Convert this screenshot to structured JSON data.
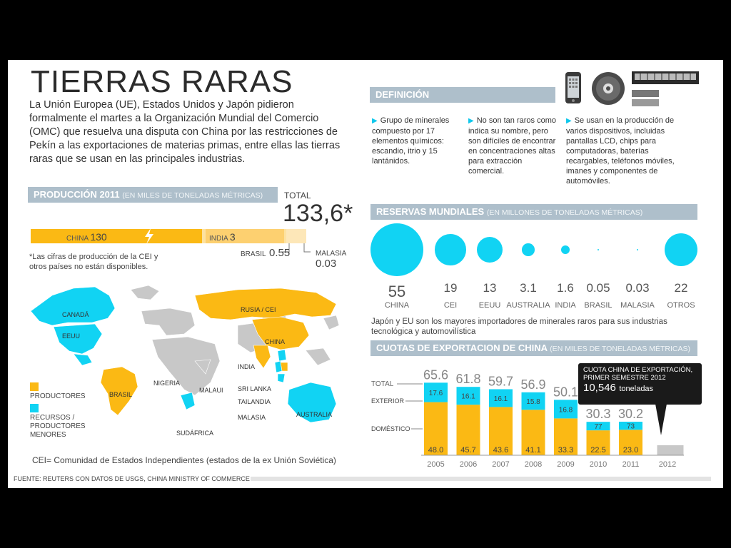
{
  "title": "TIERRAS RARAS",
  "intro": "La Unión Europea (UE), Estados Unidos y Japón pidieron formalmente el martes a la Organización Mundial del Comercio (OMC) que resuelva una disputa con China por las restricciones de Pekín a las exportaciones de materias primas, entre ellas las tierras raras que se usan en las principales industrias.",
  "definicion": {
    "header": "DEFINICIÓN",
    "items": [
      "Grupo de minerales compuesto por 17 elementos químicos: escandio, itrio y 15 lantánidos.",
      "No son tan raros como indica su nombre, pero son difíciles de encontrar en concentraciones altas para extracción comercial.",
      "Se usan en la producción de varios dispositivos, incluidas pantallas LCD, chips para computadoras, baterías recargables, teléfonos móviles, imanes y componentes de automóviles."
    ]
  },
  "produccion": {
    "header": "PRODUCCIÓN 2011",
    "unit": "(EN MILES DE TONELADAS MÉTRICAS)",
    "total_label": "TOTAL",
    "total_value": "133,6*",
    "china_label": "CHINA",
    "china_value": "130",
    "india_label": "INDIA",
    "india_value": "3",
    "brasil_label": "BRASIL",
    "brasil_value": "0.55",
    "malasia_label": "MALASIA",
    "malasia_value": "0.03",
    "note": "*Las cifras de producción de la CEI y otros países no están disponibles."
  },
  "map": {
    "labels": {
      "canada": "CANADÁ",
      "eeuu": "EEUU",
      "rusia": "RUSIA / CEI",
      "china": "CHINA",
      "india": "INDIA",
      "nigeria": "NIGERIA",
      "malawi": "MALAUI",
      "brasil": "BRASIL",
      "srilanka": "SRI LANKA",
      "tailandia": "TAILANDIA",
      "malasia": "MALASIA",
      "australia": "AUSTRALIA",
      "sudafrica": "SUDÁFRICA"
    },
    "legend_productores": "PRODUCTORES",
    "legend_recursos": "RECURSOS / PRODUCTORES MENORES",
    "cei_note": "CEI= Comunidad de Estados Independientes (estados de la ex Unión Soviética)",
    "colors": {
      "productores": "#fbb914",
      "recursos": "#11d3f3",
      "land": "#c8c8c8"
    }
  },
  "reservas": {
    "header": "RESERVAS MUNDIALES",
    "unit": "(EN MILLONES DE TONELADAS MÉTRICAS)",
    "items": [
      {
        "value": "55",
        "label": "CHINA"
      },
      {
        "value": "19",
        "label": "CEI"
      },
      {
        "value": "13",
        "label": "EEUU"
      },
      {
        "value": "3.1",
        "label": "AUSTRALIA"
      },
      {
        "value": "1.6",
        "label": "INDIA"
      },
      {
        "value": "0.05",
        "label": "BRASIL"
      },
      {
        "value": "0.03",
        "label": "MALASIA"
      },
      {
        "value": "22",
        "label": "OTROS"
      }
    ],
    "note": "Japón y EU son los mayores importadores de minerales raros para sus industrias tecnológica y automovilística"
  },
  "cuotas": {
    "header": "CUOTAS DE EXPORTACION DE CHINA",
    "unit": "(EN MILES DE TONELADAS MÉTRICAS)",
    "total_label": "TOTAL",
    "exterior_label": "EXTERIOR",
    "domestico_label": "DOMÉSTICO",
    "callout_title": "CUOTA CHINA DE EXPORTACIÓN, PRIMER SEMESTRE 2012",
    "callout_value": "10,546",
    "callout_unit": "toneladas"
  },
  "fuente": "FUENTE: REUTERS CON DATOS DE USGS, CHINA MINISTRY OF COMMERCE",
  "chart_data": [
    {
      "type": "bar",
      "title": "PRODUCCIÓN 2011",
      "categories": [
        "CHINA",
        "INDIA",
        "BRASIL",
        "MALASIA"
      ],
      "values": [
        130,
        3,
        0.55,
        0.03
      ]
    },
    {
      "type": "scatter",
      "title": "RESERVAS MUNDIALES",
      "categories": [
        "CHINA",
        "CEI",
        "EEUU",
        "AUSTRALIA",
        "INDIA",
        "BRASIL",
        "MALASIA",
        "OTROS"
      ],
      "values": [
        55,
        19,
        13,
        3.1,
        1.6,
        0.05,
        0.03,
        22
      ]
    },
    {
      "type": "bar",
      "title": "CUOTAS DE EXPORTACION DE CHINA",
      "categories": [
        "2005",
        "2006",
        "2007",
        "2008",
        "2009",
        "2010",
        "2011",
        "2012"
      ],
      "totals": [
        "65.6",
        "61.8",
        "59.7",
        "56.9",
        "50.1",
        "30.3",
        "30.2",
        ""
      ],
      "series": [
        {
          "name": "DOMÉSTICO",
          "values": [
            48.0,
            45.7,
            43.6,
            41.1,
            33.3,
            22.5,
            23.0,
            null
          ]
        },
        {
          "name": "EXTERIOR",
          "values": [
            17.6,
            16.1,
            16.1,
            15.8,
            16.8,
            7.7,
            7.3,
            null
          ]
        }
      ],
      "colors": {
        "DOMÉSTICO": "#fbb914",
        "EXTERIOR": "#11d3f3",
        "2012": "#c8c8c8"
      }
    }
  ]
}
